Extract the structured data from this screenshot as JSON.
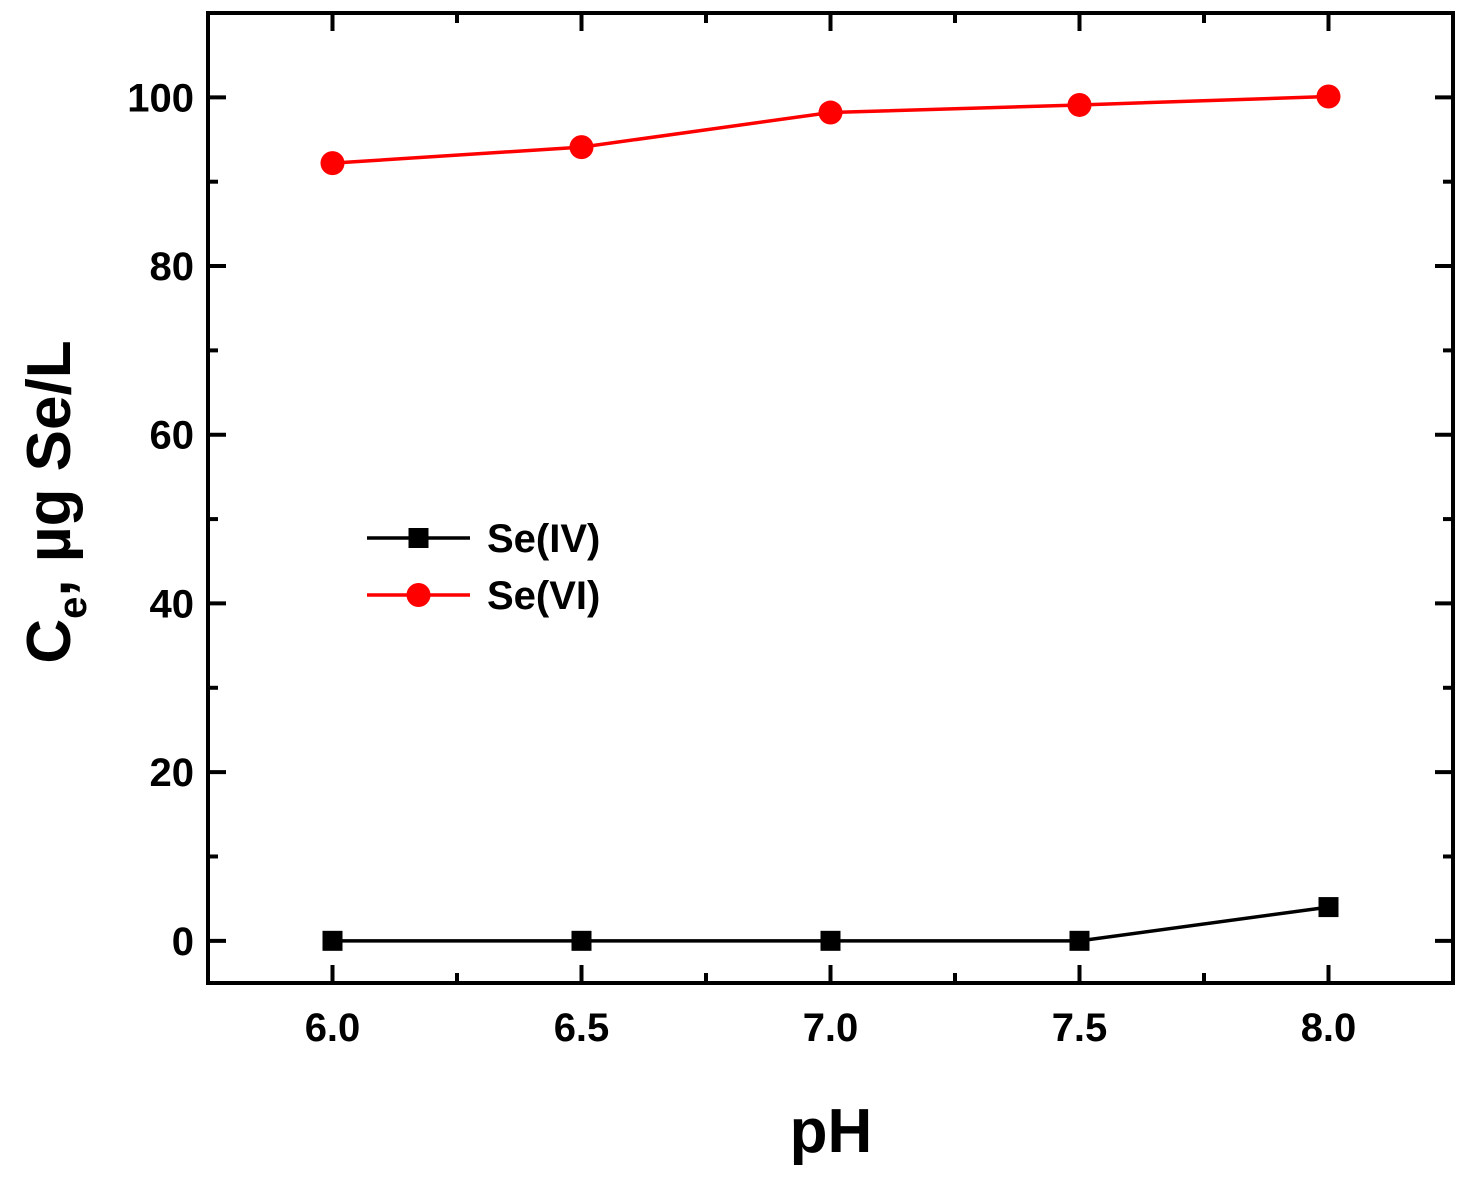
{
  "chart_data": {
    "type": "line",
    "title": "",
    "xlabel": "pH",
    "ylabel": {
      "main": "C",
      "subscript": "e",
      "suffix": ", µg Se/L"
    },
    "xlim": [
      5.75,
      8.25
    ],
    "ylim": [
      -5,
      110
    ],
    "x_ticks": [
      6.0,
      6.5,
      7.0,
      7.5,
      8.0
    ],
    "x_tick_labels": [
      "6.0",
      "6.5",
      "7.0",
      "7.5",
      "8.0"
    ],
    "y_ticks": [
      0,
      20,
      40,
      60,
      80,
      100
    ],
    "y_tick_labels": [
      "0",
      "20",
      "40",
      "60",
      "80",
      "100"
    ],
    "grid": false,
    "legend_position": "center-left",
    "series": [
      {
        "name": "Se(IV)",
        "marker": "square",
        "color": "#000000",
        "x": [
          6.0,
          6.5,
          7.0,
          7.5,
          8.0
        ],
        "values": [
          0,
          0,
          0,
          0,
          4
        ]
      },
      {
        "name": "Se(VI)",
        "marker": "circle",
        "color": "#ff0000",
        "x": [
          6.0,
          6.5,
          7.0,
          7.5,
          8.0
        ],
        "values": [
          92.2,
          94.1,
          98.2,
          99.1,
          100.1
        ]
      }
    ]
  }
}
